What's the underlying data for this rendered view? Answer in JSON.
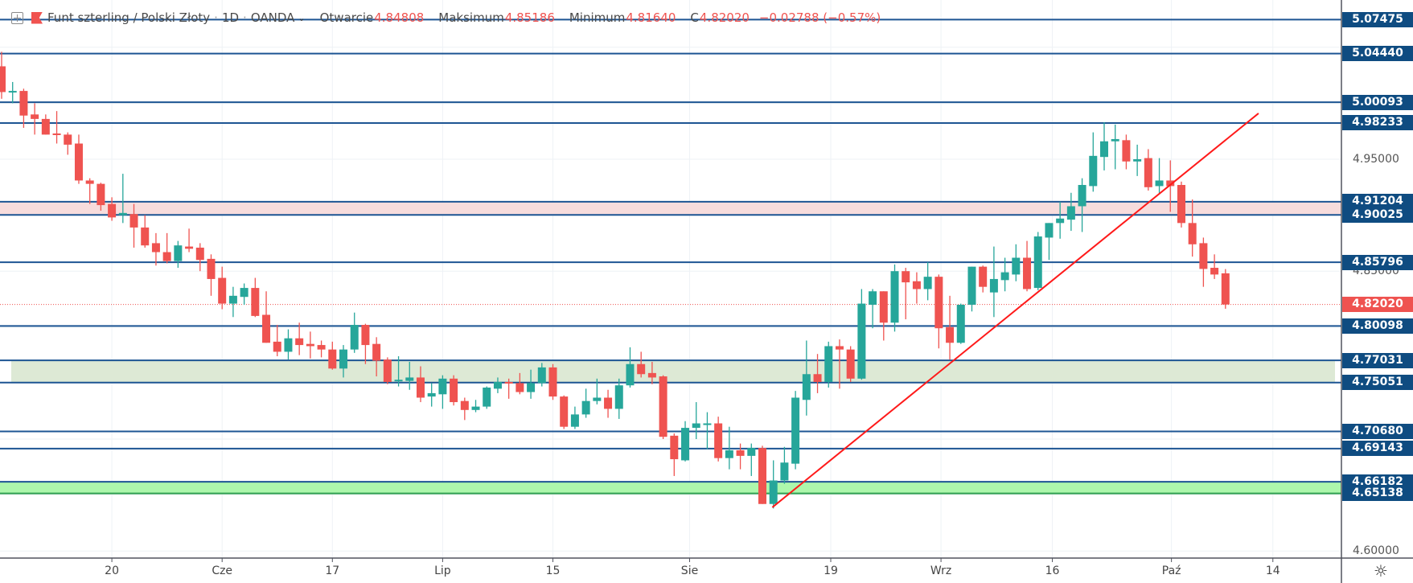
{
  "header": {
    "symbol": "Funt szterling / Polski Złoty",
    "interval": "1D",
    "source": "OANDA",
    "separator": "·",
    "open_label": "Otwarcie",
    "open": "4.84808",
    "high_label": "Maksimum",
    "high": "4.85186",
    "low_label": "Minimum",
    "low": "4.81640",
    "close_label": "C",
    "close": "4.82020",
    "change": "−0.02788 (−0.57%)"
  },
  "colors": {
    "up": "#26a69a",
    "down": "#ef5350",
    "level_line": "#1d5593",
    "level_label_bg": "#0f4c81",
    "trendline": "#ff1a1a",
    "resistance_zone": "#f7dcdc",
    "support_zone": "#dde9d5",
    "strong_support_zone": "#adf7ac"
  },
  "chart_data": {
    "type": "candlestick",
    "title": "Funt szterling / Polski Złoty · 1D · OANDA",
    "ylim": [
      4.5945,
      5.092
    ],
    "grid": true,
    "price_ticks": [
      "4.95000",
      "4.85000",
      "4.60000"
    ],
    "price_grid": [
      5.05,
      5.0,
      4.95,
      4.9,
      4.85,
      4.8,
      4.75,
      4.7,
      4.65,
      4.6
    ],
    "time_ticks": [
      {
        "label": "20",
        "index": 10
      },
      {
        "label": "Cze",
        "index": 20
      },
      {
        "label": "17",
        "index": 30
      },
      {
        "label": "Lip",
        "index": 40
      },
      {
        "label": "15",
        "index": 50
      },
      {
        "label": "Sie",
        "index": 62.4
      },
      {
        "label": "19",
        "index": 75.2
      },
      {
        "label": "Wrz",
        "index": 85.2
      },
      {
        "label": "16",
        "index": 95.3
      },
      {
        "label": "Paź",
        "index": 106.1
      },
      {
        "label": "14",
        "index": 115.3
      }
    ],
    "candles_ohlc": [
      [
        5.033,
        5.046,
        5.004,
        5.01
      ],
      [
        5.01,
        5.019,
        5.0,
        5.011
      ],
      [
        5.011,
        5.013,
        4.978,
        4.989
      ],
      [
        4.99,
        5.0,
        4.972,
        4.986
      ],
      [
        4.986,
        4.99,
        4.972,
        4.972
      ],
      [
        4.973,
        4.993,
        4.964,
        4.972
      ],
      [
        4.972,
        4.974,
        4.954,
        4.963
      ],
      [
        4.964,
        4.972,
        4.928,
        4.931
      ],
      [
        4.931,
        4.933,
        4.91,
        4.928
      ],
      [
        4.928,
        4.929,
        4.904,
        4.909
      ],
      [
        4.91,
        4.916,
        4.895,
        4.898
      ],
      [
        4.9,
        4.937,
        4.893,
        4.902
      ],
      [
        4.901,
        4.91,
        4.871,
        4.889
      ],
      [
        4.889,
        4.9,
        4.871,
        4.873
      ],
      [
        4.875,
        4.884,
        4.855,
        4.867
      ],
      [
        4.867,
        4.884,
        4.857,
        4.859
      ],
      [
        4.859,
        4.877,
        4.853,
        4.873
      ],
      [
        4.872,
        4.888,
        4.867,
        4.87
      ],
      [
        4.871,
        4.875,
        4.85,
        4.86
      ],
      [
        4.861,
        4.865,
        4.828,
        4.843
      ],
      [
        4.844,
        4.854,
        4.816,
        4.821
      ],
      [
        4.821,
        4.836,
        4.809,
        4.828
      ],
      [
        4.827,
        4.839,
        4.82,
        4.835
      ],
      [
        4.835,
        4.844,
        4.809,
        4.81
      ],
      [
        4.811,
        4.832,
        4.786,
        4.786
      ],
      [
        4.787,
        4.802,
        4.774,
        4.778
      ],
      [
        4.778,
        4.798,
        4.771,
        4.79
      ],
      [
        4.79,
        4.804,
        4.775,
        4.784
      ],
      [
        4.785,
        4.796,
        4.772,
        4.783
      ],
      [
        4.784,
        4.788,
        4.773,
        4.78
      ],
      [
        4.78,
        4.787,
        4.762,
        4.763
      ],
      [
        4.763,
        4.784,
        4.755,
        4.78
      ],
      [
        4.78,
        4.813,
        4.777,
        4.802
      ],
      [
        4.802,
        4.803,
        4.767,
        4.784
      ],
      [
        4.785,
        4.791,
        4.756,
        4.77
      ],
      [
        4.771,
        4.773,
        4.749,
        4.751
      ],
      [
        4.752,
        4.774,
        4.747,
        4.753
      ],
      [
        4.752,
        4.769,
        4.744,
        4.755
      ],
      [
        4.755,
        4.765,
        4.733,
        4.737
      ],
      [
        4.738,
        4.75,
        4.729,
        4.741
      ],
      [
        4.74,
        4.757,
        4.727,
        4.754
      ],
      [
        4.754,
        4.757,
        4.73,
        4.733
      ],
      [
        4.734,
        4.737,
        4.717,
        4.726
      ],
      [
        4.726,
        4.735,
        4.724,
        4.729
      ],
      [
        4.729,
        4.747,
        4.727,
        4.746
      ],
      [
        4.745,
        4.755,
        4.741,
        4.751
      ],
      [
        4.751,
        4.754,
        4.736,
        4.75
      ],
      [
        4.75,
        4.759,
        4.74,
        4.742
      ],
      [
        4.742,
        4.762,
        4.736,
        4.75
      ],
      [
        4.75,
        4.768,
        4.747,
        4.764
      ],
      [
        4.764,
        4.767,
        4.735,
        4.738
      ],
      [
        4.738,
        4.739,
        4.709,
        4.711
      ],
      [
        4.711,
        4.729,
        4.709,
        4.722
      ],
      [
        4.722,
        4.745,
        4.719,
        4.734
      ],
      [
        4.734,
        4.754,
        4.731,
        4.737
      ],
      [
        4.737,
        4.744,
        4.719,
        4.727
      ],
      [
        4.727,
        4.754,
        4.718,
        4.748
      ],
      [
        4.748,
        4.782,
        4.746,
        4.767
      ],
      [
        4.767,
        4.778,
        4.755,
        4.758
      ],
      [
        4.759,
        4.769,
        4.749,
        4.755
      ],
      [
        4.756,
        4.757,
        4.7,
        4.702
      ],
      [
        4.703,
        4.705,
        4.667,
        4.682
      ],
      [
        4.681,
        4.716,
        4.68,
        4.71
      ],
      [
        4.71,
        4.733,
        4.7,
        4.714
      ],
      [
        4.713,
        4.724,
        4.691,
        4.714
      ],
      [
        4.714,
        4.72,
        4.68,
        4.683
      ],
      [
        4.683,
        4.711,
        4.673,
        4.69
      ],
      [
        4.69,
        4.696,
        4.673,
        4.685
      ],
      [
        4.685,
        4.696,
        4.667,
        4.692
      ],
      [
        4.692,
        4.694,
        4.642,
        4.642
      ],
      [
        4.642,
        4.681,
        4.638,
        4.663
      ],
      [
        4.663,
        4.693,
        4.66,
        4.679
      ],
      [
        4.678,
        4.743,
        4.673,
        4.737
      ],
      [
        4.735,
        4.788,
        4.721,
        4.758
      ],
      [
        4.758,
        4.776,
        4.741,
        4.751
      ],
      [
        4.751,
        4.787,
        4.746,
        4.783
      ],
      [
        4.783,
        4.789,
        4.745,
        4.78
      ],
      [
        4.78,
        4.783,
        4.751,
        4.754
      ],
      [
        4.754,
        4.834,
        4.753,
        4.821
      ],
      [
        4.82,
        4.834,
        4.799,
        4.832
      ],
      [
        4.832,
        4.832,
        4.788,
        4.804
      ],
      [
        4.804,
        4.856,
        4.796,
        4.85
      ],
      [
        4.85,
        4.853,
        4.807,
        4.84
      ],
      [
        4.841,
        4.849,
        4.821,
        4.834
      ],
      [
        4.834,
        4.858,
        4.824,
        4.845
      ],
      [
        4.845,
        4.847,
        4.781,
        4.799
      ],
      [
        4.8,
        4.828,
        4.771,
        4.786
      ],
      [
        4.786,
        4.821,
        4.785,
        4.82
      ],
      [
        4.82,
        4.854,
        4.814,
        4.854
      ],
      [
        4.854,
        4.855,
        4.831,
        4.836
      ],
      [
        4.831,
        4.872,
        4.809,
        4.843
      ],
      [
        4.842,
        4.862,
        4.832,
        4.849
      ],
      [
        4.847,
        4.874,
        4.841,
        4.862
      ],
      [
        4.862,
        4.877,
        4.832,
        4.834
      ],
      [
        4.835,
        4.885,
        4.833,
        4.881
      ],
      [
        4.88,
        4.893,
        4.86,
        4.893
      ],
      [
        4.893,
        4.912,
        4.879,
        4.897
      ],
      [
        4.896,
        4.92,
        4.886,
        4.908
      ],
      [
        4.908,
        4.933,
        4.885,
        4.927
      ],
      [
        4.926,
        4.974,
        4.921,
        4.953
      ],
      [
        4.952,
        4.983,
        4.94,
        4.966
      ],
      [
        4.966,
        4.981,
        4.941,
        4.968
      ],
      [
        4.967,
        4.972,
        4.941,
        4.948
      ],
      [
        4.948,
        4.963,
        4.935,
        4.95
      ],
      [
        4.951,
        4.959,
        4.922,
        4.925
      ],
      [
        4.926,
        4.951,
        4.919,
        4.931
      ],
      [
        4.931,
        4.949,
        4.903,
        4.926
      ],
      [
        4.927,
        4.93,
        4.889,
        4.893
      ],
      [
        4.893,
        4.914,
        4.863,
        4.874
      ],
      [
        4.875,
        4.88,
        4.836,
        4.852
      ],
      [
        4.853,
        4.865,
        4.843,
        4.847
      ],
      [
        4.84808,
        4.85186,
        4.8164,
        4.8202
      ]
    ],
    "levels": [
      "5.07475",
      "5.04440",
      "5.00093",
      "4.98233",
      "4.91204",
      "4.90025",
      "4.85796",
      "4.80098",
      "4.77031",
      "4.75051",
      "4.70680",
      "4.69143",
      "4.66182",
      "4.65138"
    ],
    "zones": [
      {
        "kind": "resistance",
        "from": 4.90025,
        "to": 4.91204
      },
      {
        "kind": "support",
        "from": 4.75051,
        "to": 4.77031
      },
      {
        "kind": "strong-support",
        "from": 4.65138,
        "to": 4.66182
      }
    ],
    "trendline": {
      "from": {
        "index": 69.9,
        "price": 4.639
      },
      "to": {
        "index": 114.0,
        "price": 4.991
      }
    },
    "last_price": "4.82020"
  },
  "icons": {
    "settings": "gear-icon",
    "add": "plus-square-icon",
    "flag": "flag-icon"
  }
}
